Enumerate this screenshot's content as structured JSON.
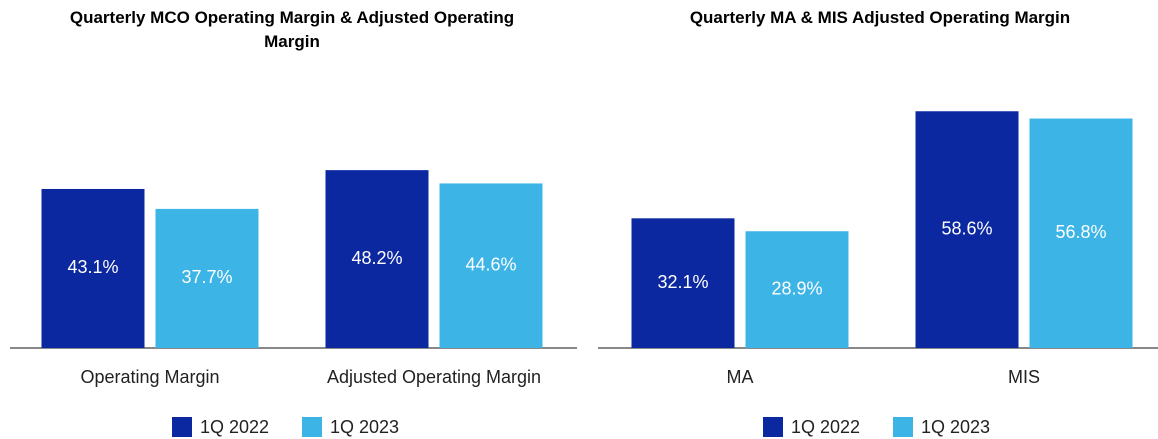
{
  "chart_data": [
    {
      "type": "bar",
      "title": "Quarterly MCO Operating Margin & Adjusted Operating Margin",
      "categories": [
        "Operating Margin",
        "Adjusted Operating Margin"
      ],
      "series": [
        {
          "name": "1Q 2022",
          "color": "#0b28a0",
          "values": [
            43.1,
            48.2
          ],
          "value_labels": [
            "43.1%",
            "48.2%"
          ]
        },
        {
          "name": "1Q 2023",
          "color": "#3db4e6",
          "values": [
            37.7,
            44.6
          ],
          "value_labels": [
            "37.7%",
            "44.6%"
          ]
        }
      ]
    },
    {
      "type": "bar",
      "title": "Quarterly MA & MIS Adjusted Operating Margin",
      "categories": [
        "MA",
        "MIS"
      ],
      "series": [
        {
          "name": "1Q 2022",
          "color": "#0b28a0",
          "values": [
            32.1,
            58.6
          ],
          "value_labels": [
            "32.1%",
            "58.6%"
          ]
        },
        {
          "name": "1Q 2023",
          "color": "#3db4e6",
          "values": [
            28.9,
            56.8
          ],
          "value_labels": [
            "28.9%",
            "56.8%"
          ]
        }
      ]
    }
  ]
}
